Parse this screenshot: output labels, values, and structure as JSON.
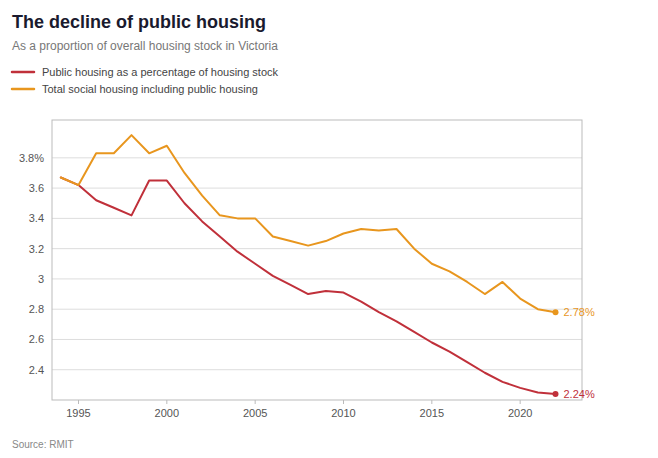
{
  "chart_data": {
    "type": "line",
    "title": "The decline of public housing",
    "subtitle": "As a proportion of overall housing stock in Victoria",
    "source": "Source: RMIT",
    "x": [
      1994,
      1995,
      1996,
      1997,
      1998,
      1999,
      2000,
      2001,
      2002,
      2003,
      2004,
      2005,
      2006,
      2007,
      2008,
      2009,
      2010,
      2011,
      2012,
      2013,
      2014,
      2015,
      2016,
      2017,
      2018,
      2019,
      2020,
      2021,
      2022
    ],
    "series": [
      {
        "name": "Public housing as a percentage of housing stock",
        "color": "#c0303a",
        "values": [
          3.67,
          3.62,
          3.52,
          3.47,
          3.42,
          3.65,
          3.65,
          3.5,
          3.38,
          3.28,
          3.18,
          3.1,
          3.02,
          2.96,
          2.9,
          2.92,
          2.91,
          2.85,
          2.78,
          2.72,
          2.65,
          2.58,
          2.52,
          2.45,
          2.38,
          2.32,
          2.28,
          2.25,
          2.24
        ]
      },
      {
        "name": "Total social housing including public housing",
        "color": "#e8961e",
        "values": [
          3.67,
          3.62,
          3.83,
          3.83,
          3.95,
          3.83,
          3.88,
          3.7,
          3.55,
          3.42,
          3.4,
          3.4,
          3.28,
          3.25,
          3.22,
          3.25,
          3.3,
          3.33,
          3.32,
          3.33,
          3.2,
          3.1,
          3.05,
          2.98,
          2.9,
          2.98,
          2.87,
          2.8,
          2.78
        ]
      }
    ],
    "annotations": [
      {
        "text": "2.24%",
        "x": 2022,
        "y": 2.24,
        "color": "#c0303a"
      },
      {
        "text": "2.78%",
        "x": 2022,
        "y": 2.78,
        "color": "#e8961e"
      }
    ],
    "xlim": [
      1993.5,
      2023.5
    ],
    "xticks": [
      1995,
      2000,
      2005,
      2010,
      2015,
      2020
    ],
    "ylim": [
      2.2,
      4.05
    ],
    "yticks": [
      2.4,
      2.6,
      2.8,
      3,
      3.2,
      3.4,
      3.6,
      {
        "value": 3.8,
        "label": "3.8%"
      }
    ],
    "grid": true,
    "legend": "top"
  }
}
